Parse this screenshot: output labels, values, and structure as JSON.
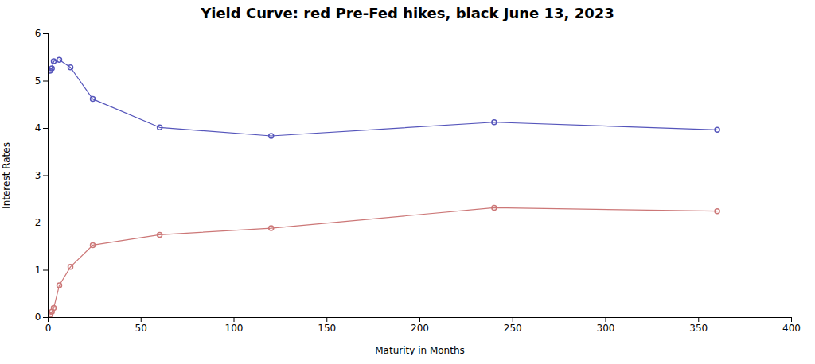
{
  "chart_data": {
    "type": "line",
    "title": "Yield Curve: red Pre-Fed hikes, black June 13, 2023",
    "xlabel": "Maturity in Months",
    "ylabel": "Interest Rates",
    "x": [
      1,
      2,
      3,
      6,
      12,
      24,
      60,
      120,
      240,
      360
    ],
    "series": [
      {
        "color": "#5555bb",
        "marker": "circle",
        "values": [
          5.22,
          5.27,
          5.42,
          5.45,
          5.29,
          4.62,
          4.02,
          3.84,
          4.13,
          3.97
        ]
      },
      {
        "color": "#cc7777",
        "marker": "circle",
        "values": [
          0.06,
          0.12,
          0.2,
          0.68,
          1.07,
          1.53,
          1.75,
          1.89,
          2.32,
          2.25
        ]
      }
    ],
    "xlim": [
      0,
      400
    ],
    "ylim": [
      0,
      6
    ],
    "xticks": [
      0,
      50,
      100,
      150,
      200,
      250,
      300,
      350,
      400
    ],
    "yticks": [
      0,
      1,
      2,
      3,
      4,
      5,
      6
    ],
    "grid": false
  }
}
